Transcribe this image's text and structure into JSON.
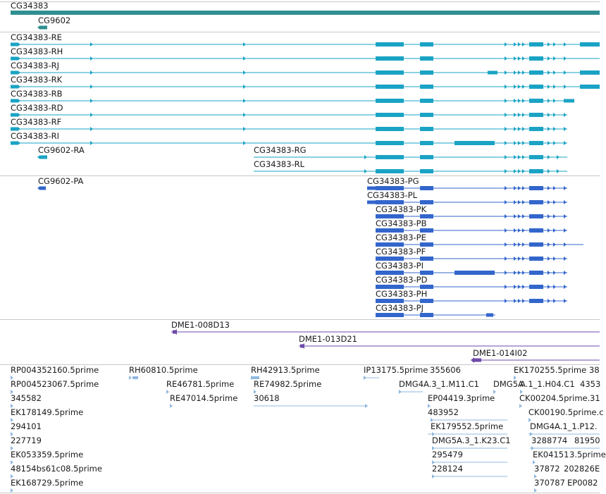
{
  "colors": {
    "gene": "#2f8f91",
    "transcript": "#1aa3c4",
    "protein": "#3366cc",
    "clone": "#6e4aa8",
    "est": "#8fb8e0",
    "separator": "#c8c8c8"
  },
  "gene_track": {
    "labels": [
      "CG34383",
      "CG9602"
    ]
  },
  "transcript_track": {
    "labels": [
      "CG34383-RE",
      "CG34383-RH",
      "CG34383-RJ",
      "CG34383-RK",
      "CG34383-RB",
      "CG34383-RD",
      "CG34383-RF",
      "CG34383-RI",
      "CG9602-RA",
      "CG34383-RG",
      "CG34383-RL"
    ]
  },
  "protein_track": {
    "labels": [
      "CG9602-PA",
      "CG34383-PG",
      "CG34383-PL",
      "CG34383-PK",
      "CG34383-PB",
      "CG34383-PE",
      "CG34383-PF",
      "CG34383-PI",
      "CG34383-PD",
      "CG34383-PH",
      "CG34383-PJ"
    ]
  },
  "clone_track": {
    "labels": [
      "DME1-008D13",
      "DME1-013D21",
      "DME1-014I02"
    ]
  },
  "est_track": {
    "labels": [
      "RP004352160.5prime",
      "RP004523067.5prime",
      "345582",
      "EK178149.5prime",
      "294101",
      "227719",
      "EK053359.5prime",
      "48154bs61c08.5prime",
      "EK168729.5prime",
      "RH60810.5prime",
      "RE46781.5prime",
      "RE47014.5prime",
      "RH42913.5prime",
      "RE74982.5prime",
      "30618",
      "IP13175.5prime",
      "355606",
      "DMG4A.3_1.M11.C1",
      "DMG5A",
      "EP04419.3prime",
      "483952",
      "EK179552.5prime",
      "DMG5A.3_1.K23.C1",
      "295479",
      "228124",
      "EK170255.5prime",
      "38",
      "A.1_1.H04.C1",
      "4353",
      "CK00204.5prime.",
      "31",
      "CK00190.5prime.c",
      "DMG4A.1_1.P12.",
      "3288774",
      "81950",
      "EK04151",
      "3.5prime",
      "37872",
      "202826",
      "E",
      "370787",
      "EP0082"
    ]
  }
}
